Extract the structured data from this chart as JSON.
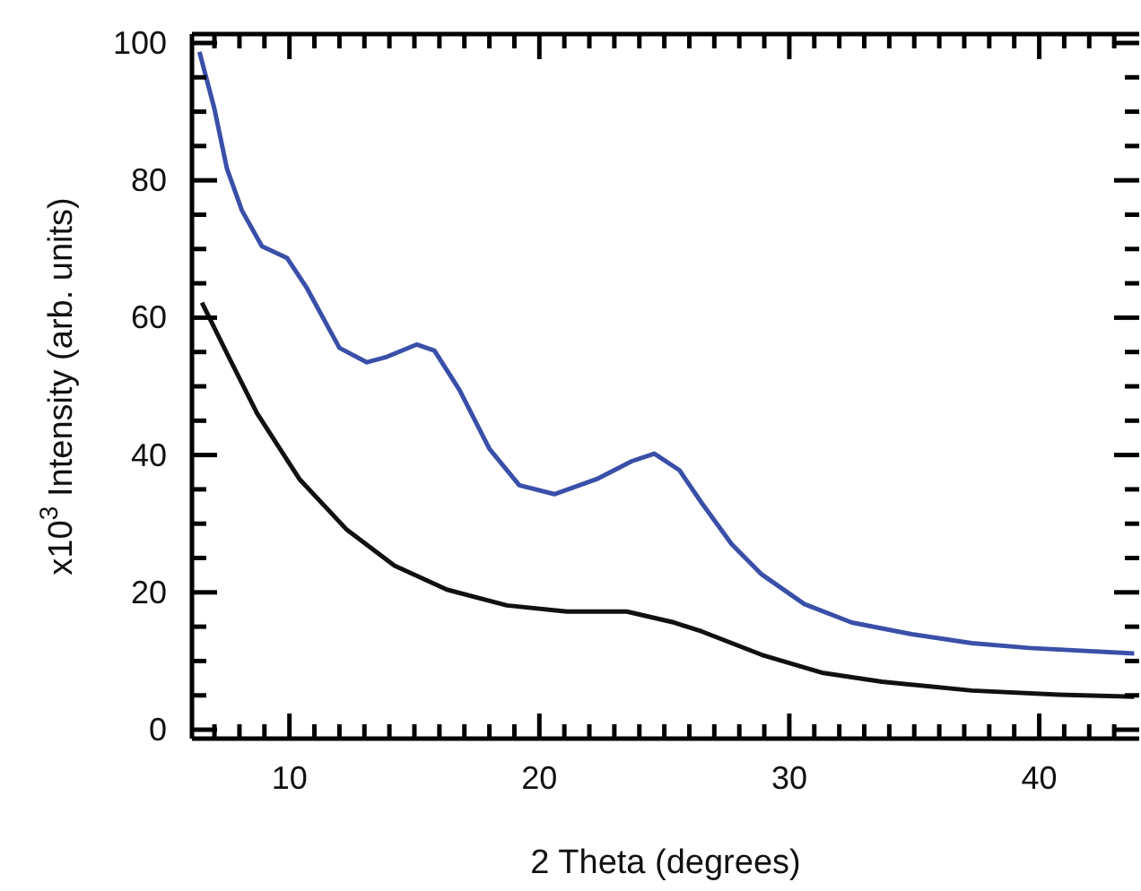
{
  "chart_data": {
    "type": "line",
    "xlabel": "2 Theta (degrees)",
    "ylabel": "x10$^{3}$ Intensity (arb. units)",
    "xlim": [
      6.1,
      44
    ],
    "ylim": [
      -1.3,
      101.3
    ],
    "xticks": [
      {
        "value": 7,
        "label": null
      },
      {
        "value": 8,
        "label": null
      },
      {
        "value": 9,
        "label": null
      },
      10,
      {
        "value": 11,
        "label": null
      },
      {
        "value": 12,
        "label": null
      },
      {
        "value": 13,
        "label": null
      },
      {
        "value": 14,
        "label": null
      },
      {
        "value": 15,
        "label": null
      },
      {
        "value": 16,
        "label": null
      },
      {
        "value": 17,
        "label": null
      },
      {
        "value": 18,
        "label": null
      },
      {
        "value": 19,
        "label": null
      },
      20,
      {
        "value": 21,
        "label": null
      },
      {
        "value": 22,
        "label": null
      },
      {
        "value": 23,
        "label": null
      },
      {
        "value": 24,
        "label": null
      },
      {
        "value": 25,
        "label": null
      },
      {
        "value": 26,
        "label": null
      },
      {
        "value": 27,
        "label": null
      },
      {
        "value": 28,
        "label": null
      },
      {
        "value": 29,
        "label": null
      },
      30,
      {
        "value": 31,
        "label": null
      },
      {
        "value": 32,
        "label": null
      },
      {
        "value": 33,
        "label": null
      },
      {
        "value": 34,
        "label": null
      },
      {
        "value": 35,
        "label": null
      },
      {
        "value": 36,
        "label": null
      },
      {
        "value": 37,
        "label": null
      },
      {
        "value": 38,
        "label": null
      },
      {
        "value": 39,
        "label": null
      },
      40,
      {
        "value": 41,
        "label": null
      },
      {
        "value": 42,
        "label": null
      },
      {
        "value": 43,
        "label": null
      }
    ],
    "yticks": [
      0,
      {
        "value": 5,
        "label": null
      },
      {
        "value": 10,
        "label": null
      },
      {
        "value": 15,
        "label": null
      },
      20,
      {
        "value": 25,
        "label": null
      },
      {
        "value": 30,
        "label": null
      },
      {
        "value": 35,
        "label": null
      },
      40,
      {
        "value": 45,
        "label": null
      },
      {
        "value": 50,
        "label": null
      },
      {
        "value": 55,
        "label": null
      },
      60,
      {
        "value": 65,
        "label": null
      },
      {
        "value": 70,
        "label": null
      },
      {
        "value": 75,
        "label": null
      },
      80,
      {
        "value": 85,
        "label": null
      },
      {
        "value": 90,
        "label": null
      },
      {
        "value": 95,
        "label": null
      },
      100
    ],
    "grid": false,
    "marker": "none",
    "line_style": "solid",
    "series": [
      {
        "color": "#3a4fa8",
        "x": [
          6.4,
          7.0,
          7.5,
          8.1,
          8.9,
          9.9,
          10.7,
          12.0,
          13.1,
          13.9,
          15.1,
          15.8,
          16.8,
          18.0,
          19.2,
          20.6,
          22.3,
          23.7,
          24.6,
          25.6,
          26.5,
          27.7,
          28.9,
          30.6,
          32.5,
          34.9,
          37.3,
          39.6,
          43.8
        ],
        "values": [
          98.7,
          90.4,
          81.7,
          75.6,
          70.4,
          68.7,
          64.3,
          55.6,
          53.5,
          54.3,
          56.1,
          55.2,
          49.5,
          40.9,
          35.6,
          34.3,
          36.5,
          39.1,
          40.2,
          37.8,
          33.0,
          27.0,
          22.6,
          18.3,
          15.6,
          13.9,
          12.6,
          11.9,
          11.1
        ]
      },
      {
        "color": "#111111",
        "x": [
          6.5,
          7.5,
          8.7,
          10.4,
          12.3,
          14.2,
          16.3,
          18.7,
          21.1,
          23.5,
          25.4,
          26.5,
          28.9,
          31.3,
          33.7,
          37.3,
          40.8,
          43.8
        ],
        "values": [
          62.2,
          54.8,
          46.1,
          36.5,
          29.1,
          23.9,
          20.4,
          18.1,
          17.2,
          17.2,
          15.6,
          14.3,
          10.9,
          8.3,
          7.0,
          5.7,
          5.1,
          4.8
        ]
      }
    ]
  }
}
